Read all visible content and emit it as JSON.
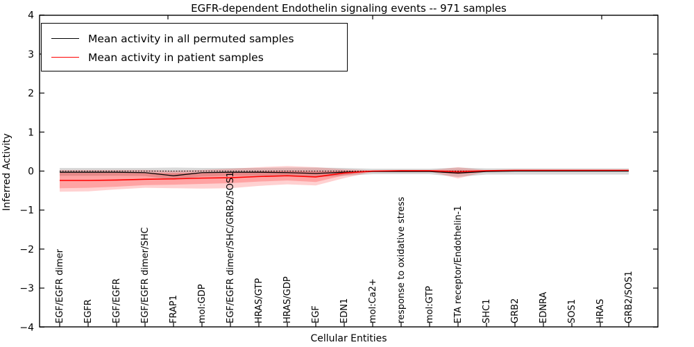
{
  "chart_data": {
    "type": "line",
    "title": "EGFR-dependent Endothelin signaling events -- 971 samples",
    "xlabel": "Cellular Entities",
    "ylabel": "Inferred Activity",
    "ylim": [
      -4,
      4
    ],
    "yticks": [
      4,
      3,
      2,
      1,
      0,
      -1,
      -2,
      -3,
      -4
    ],
    "grid": false,
    "legend_position": "upper-left",
    "legend": [
      {
        "label": "Mean activity in all permuted samples",
        "color": "#000000"
      },
      {
        "label": "Mean activity in patient samples",
        "color": "#ff0000"
      }
    ],
    "categories": [
      "EGF/EGFR dimer",
      "EGFR",
      "EGF/EGFR",
      "EGF/EGFR dimer/SHC",
      "FRAP1",
      "mol:GDP",
      "EGF/EGFR dimer/SHC/GRB2/SOS1",
      "HRAS/GTP",
      "HRAS/GDP",
      "EGF",
      "EDN1",
      "mol:Ca2+",
      "response to oxidative stress",
      "mol:GTP",
      "ETA receptor/Endothelin-1",
      "SHC1",
      "GRB2",
      "EDNRA",
      "SOS1",
      "HRAS",
      "GRB2/SOS1"
    ],
    "bands": [
      {
        "name": "permuted-spread",
        "color": "rgba(125,125,125,0.30)",
        "hi": [
          0.08,
          0.08,
          0.08,
          0.08,
          0.09,
          0.08,
          0.08,
          0.08,
          0.09,
          0.09,
          0.08,
          0.06,
          0.06,
          0.06,
          0.09,
          0.07,
          0.07,
          0.07,
          0.07,
          0.07,
          0.07
        ],
        "lo": [
          -0.12,
          -0.12,
          -0.12,
          -0.13,
          -0.22,
          -0.14,
          -0.12,
          -0.12,
          -0.13,
          -0.16,
          -0.12,
          -0.08,
          -0.08,
          -0.08,
          -0.15,
          -0.09,
          -0.09,
          -0.09,
          -0.09,
          -0.09,
          -0.09
        ]
      },
      {
        "name": "patient-spread-outer",
        "color": "rgba(255,0,0,0.18)",
        "hi": [
          0.03,
          0.03,
          0.03,
          0.03,
          0.01,
          0.03,
          0.06,
          0.1,
          0.13,
          0.1,
          0.05,
          0.02,
          0.02,
          0.02,
          0.1,
          0.02,
          0.02,
          0.02,
          0.02,
          0.02,
          0.02
        ],
        "lo": [
          -0.53,
          -0.52,
          -0.47,
          -0.43,
          -0.44,
          -0.45,
          -0.44,
          -0.38,
          -0.34,
          -0.37,
          -0.18,
          -0.02,
          -0.01,
          -0.01,
          -0.19,
          -0.01,
          -0.01,
          -0.01,
          -0.01,
          -0.01,
          -0.01
        ]
      },
      {
        "name": "patient-spread-inner",
        "color": "rgba(255,0,0,0.22)",
        "hi": [
          -0.04,
          -0.04,
          -0.04,
          -0.04,
          -0.05,
          -0.04,
          -0.03,
          -0.01,
          0.01,
          -0.01,
          0.01,
          0.01,
          0.02,
          0.02,
          0.03,
          0.02,
          0.02,
          0.02,
          0.02,
          0.02,
          0.02
        ],
        "lo": [
          -0.44,
          -0.43,
          -0.4,
          -0.36,
          -0.35,
          -0.33,
          -0.31,
          -0.27,
          -0.24,
          -0.28,
          -0.11,
          -0.01,
          0.0,
          0.0,
          -0.08,
          0.0,
          0.01,
          0.01,
          0.01,
          0.01,
          0.01
        ]
      }
    ],
    "series": [
      {
        "name": "zero-reference",
        "color": "#000000",
        "style": "dotted",
        "width": 1.1,
        "values": [
          0,
          0,
          0,
          0,
          0,
          0,
          0,
          0,
          0,
          0,
          0,
          0,
          0,
          0,
          0,
          0,
          0,
          0,
          0,
          0,
          0
        ]
      },
      {
        "name": "Mean activity in all permuted samples",
        "color": "#000000",
        "style": "solid",
        "width": 1.3,
        "values": [
          -0.03,
          -0.03,
          -0.03,
          -0.04,
          -0.12,
          -0.04,
          -0.03,
          -0.03,
          -0.04,
          -0.06,
          -0.03,
          -0.01,
          -0.01,
          -0.01,
          -0.05,
          -0.01,
          0.0,
          0.0,
          0.0,
          0.0,
          0.0
        ]
      },
      {
        "name": "Mean activity in patient samples",
        "color": "#ff0000",
        "style": "solid",
        "width": 1.6,
        "values": [
          -0.24,
          -0.24,
          -0.23,
          -0.21,
          -0.2,
          -0.18,
          -0.17,
          -0.14,
          -0.12,
          -0.15,
          -0.05,
          0.0,
          0.01,
          0.01,
          -0.02,
          0.01,
          0.02,
          0.02,
          0.02,
          0.02,
          0.02
        ]
      }
    ]
  }
}
